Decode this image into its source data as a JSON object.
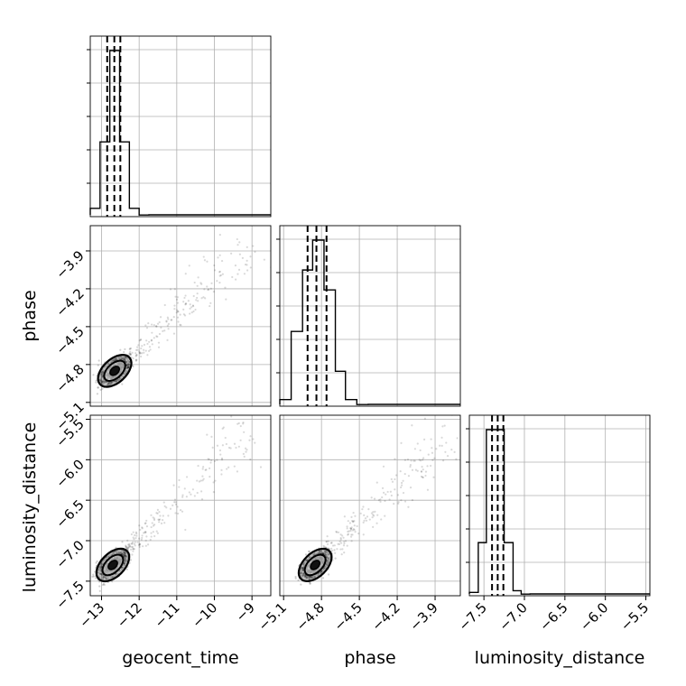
{
  "chart_data": {
    "type": "corner",
    "parameters": [
      {
        "name": "geocent_time",
        "label": "geocent_time",
        "range": [
          -13.3,
          -8.5
        ],
        "ticks": [
          -13,
          -12,
          -11,
          -10,
          -9
        ],
        "tick_labels": [
          "−13",
          "−12",
          "−11",
          "−10",
          "−9"
        ]
      },
      {
        "name": "phase",
        "label": "phase",
        "range": [
          -5.13,
          -3.7
        ],
        "ticks": [
          -5.1,
          -4.8,
          -4.5,
          -4.2,
          -3.9
        ],
        "tick_labels": [
          "−5.1",
          "−4.8",
          "−4.5",
          "−4.2",
          "−3.9"
        ]
      },
      {
        "name": "luminosity_distance",
        "label": "luminosity_distance",
        "range": [
          -7.68,
          -5.45
        ],
        "ticks": [
          -7.5,
          -7.0,
          -6.5,
          -6.0,
          -5.5
        ],
        "tick_labels": [
          "−7.5",
          "−7.0",
          "−6.5",
          "−6.0",
          "−5.5"
        ]
      }
    ],
    "histograms": [
      {
        "parameter": "geocent_time",
        "edges": [
          -13.3,
          -13.04,
          -12.78,
          -12.52,
          -12.26,
          -12.0,
          -11.74
        ],
        "counts": [
          0.05,
          0.45,
          1.0,
          0.45,
          0.05,
          0.01
        ],
        "quantiles": [
          -12.85,
          -12.66,
          -12.5
        ]
      },
      {
        "parameter": "phase",
        "edges": [
          -5.13,
          -5.04,
          -4.95,
          -4.87,
          -4.78,
          -4.69,
          -4.61,
          -4.52,
          -4.43
        ],
        "counts": [
          0.04,
          0.45,
          0.82,
          1.0,
          0.7,
          0.21,
          0.04,
          0.01
        ],
        "quantiles": [
          -4.91,
          -4.84,
          -4.76
        ]
      },
      {
        "parameter": "luminosity_distance",
        "edges": [
          -7.68,
          -7.57,
          -7.47,
          -7.36,
          -7.25,
          -7.14,
          -7.04,
          -6.93
        ],
        "counts": [
          0.02,
          0.32,
          1.0,
          1.0,
          0.32,
          0.03,
          0.01
        ],
        "quantiles": [
          -7.4,
          -7.33,
          -7.26
        ]
      }
    ],
    "scatter_pairs": [
      {
        "x": "geocent_time",
        "y": "phase",
        "center": [
          -12.65,
          -4.85
        ],
        "trend": [
          [
            -12.65,
            -4.85
          ],
          [
            -9.0,
            -3.85
          ]
        ]
      },
      {
        "x": "geocent_time",
        "y": "luminosity_distance",
        "center": [
          -12.7,
          -7.3
        ],
        "trend": [
          [
            -12.7,
            -7.3
          ],
          [
            -9.0,
            -5.6
          ]
        ]
      },
      {
        "x": "phase",
        "y": "luminosity_distance",
        "center": [
          -4.85,
          -7.3
        ],
        "trend": [
          [
            -4.85,
            -7.3
          ],
          [
            -3.7,
            -5.55
          ]
        ]
      }
    ],
    "grid": true,
    "colors": {
      "line": "#000000",
      "grid": "#b0b0b0",
      "scatter": "#000000"
    }
  }
}
